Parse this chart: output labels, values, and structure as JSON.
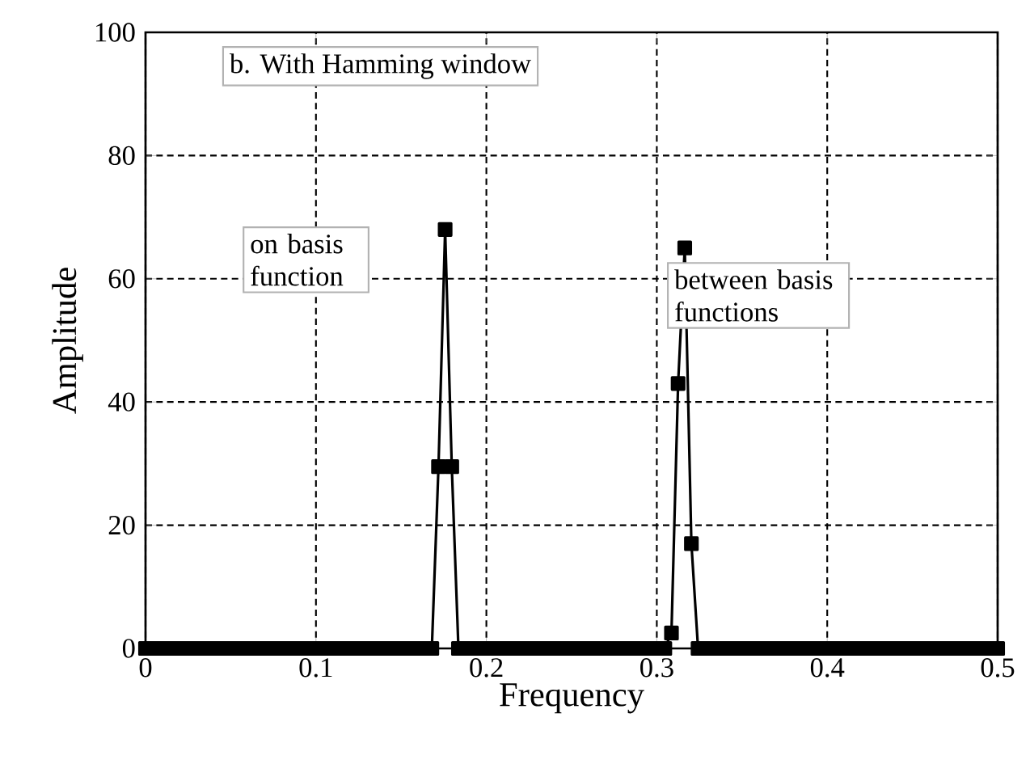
{
  "chart_data": {
    "type": "line",
    "xlabel": "Frequency",
    "ylabel": "Amplitude",
    "annotations": [
      "b.  With Hamming window",
      "on basis function",
      "between basis functions"
    ],
    "x": [
      0,
      0.0039,
      0.0078,
      0.0117,
      0.0156,
      0.0195,
      0.0234,
      0.0273,
      0.0313,
      0.0352,
      0.0391,
      0.043,
      0.0469,
      0.0508,
      0.0547,
      0.0586,
      0.0625,
      0.0664,
      0.0703,
      0.0742,
      0.0781,
      0.082,
      0.0859,
      0.0898,
      0.0938,
      0.0977,
      0.1016,
      0.1055,
      0.1094,
      0.1133,
      0.1172,
      0.1211,
      0.125,
      0.1289,
      0.1328,
      0.1367,
      0.1406,
      0.1445,
      0.1484,
      0.1523,
      0.1563,
      0.1602,
      0.1641,
      0.168,
      0.1719,
      0.1758,
      0.1797,
      0.1836,
      0.1875,
      0.1914,
      0.1953,
      0.1992,
      0.2031,
      0.207,
      0.2109,
      0.2148,
      0.2188,
      0.2227,
      0.2266,
      0.2305,
      0.2344,
      0.2383,
      0.2422,
      0.2461,
      0.25,
      0.2539,
      0.2578,
      0.2617,
      0.2656,
      0.2695,
      0.2734,
      0.2773,
      0.2813,
      0.2852,
      0.2891,
      0.293,
      0.2969,
      0.3008,
      0.3047,
      0.3086,
      0.3125,
      0.3164,
      0.3203,
      0.3242,
      0.3281,
      0.332,
      0.3359,
      0.3398,
      0.3438,
      0.3477,
      0.3516,
      0.3555,
      0.3594,
      0.3633,
      0.3672,
      0.3711,
      0.375,
      0.3789,
      0.3828,
      0.3867,
      0.3906,
      0.3945,
      0.3984,
      0.4023,
      0.4063,
      0.4102,
      0.4141,
      0.418,
      0.4219,
      0.4258,
      0.4297,
      0.4336,
      0.4375,
      0.4414,
      0.4453,
      0.4492,
      0.4531,
      0.457,
      0.4609,
      0.4648,
      0.4688,
      0.4727,
      0.4766,
      0.4805,
      0.4844,
      0.4883,
      0.4922,
      0.4961,
      0.5
    ],
    "series": [
      {
        "color": "#000000",
        "values": [
          0,
          0,
          0,
          0,
          0,
          0,
          0,
          0,
          0,
          0,
          0,
          0,
          0,
          0,
          0,
          0,
          0,
          0,
          0,
          0,
          0,
          0,
          0,
          0,
          0,
          0,
          0,
          0,
          0,
          0,
          0,
          0,
          0,
          0,
          0,
          0,
          0,
          0,
          0,
          0,
          0,
          0,
          0,
          0,
          29.5,
          68,
          29.5,
          0,
          0,
          0,
          0,
          0,
          0,
          0,
          0,
          0,
          0,
          0,
          0,
          0,
          0,
          0,
          0,
          0,
          0,
          0,
          0,
          0,
          0,
          0,
          0,
          0,
          0,
          0,
          0,
          0,
          0,
          0,
          0,
          2.5,
          43,
          65,
          17,
          0,
          0,
          0,
          0,
          0,
          0,
          0,
          0,
          0,
          0,
          0,
          0,
          0,
          0,
          0,
          0,
          0,
          0,
          0,
          0,
          0,
          0,
          0,
          0,
          0,
          0,
          0,
          0,
          0,
          0,
          0,
          0,
          0,
          0,
          0,
          0,
          0,
          0,
          0,
          0,
          0,
          0,
          0,
          0,
          0,
          0
        ]
      }
    ],
    "xlim": [
      0,
      0.5
    ],
    "ylim": [
      0,
      100
    ],
    "xticks": [
      0,
      0.1,
      0.2,
      0.3,
      0.4,
      0.5
    ],
    "yticks": [
      0,
      20,
      40,
      60,
      80,
      100
    ],
    "grid": true,
    "marker": "square",
    "line_style": "solid"
  }
}
